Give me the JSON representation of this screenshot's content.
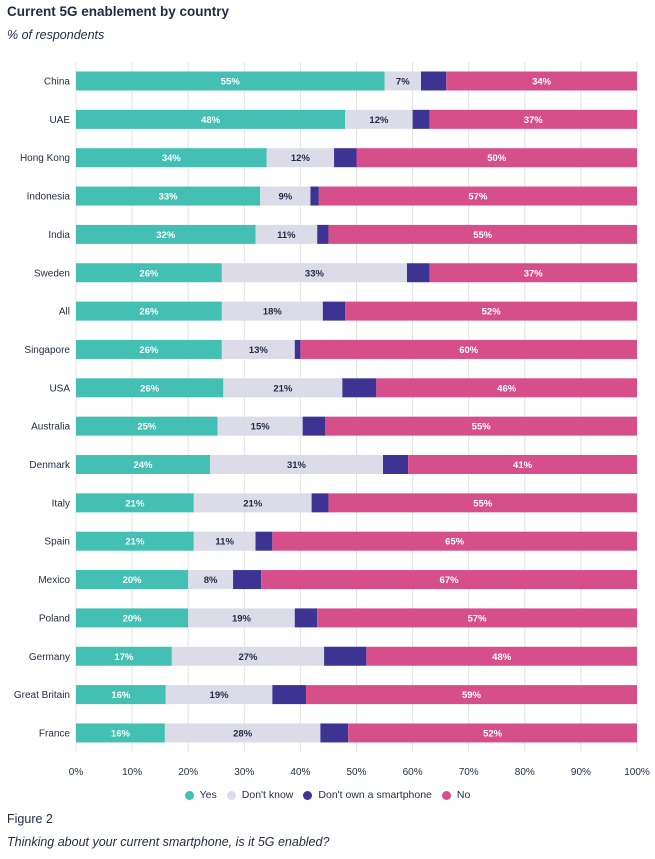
{
  "header": {
    "title": "Current 5G enablement by country",
    "subtitle": "% of respondents"
  },
  "footer": {
    "figure_label": "Figure 2",
    "note": "Thinking about your current smartphone, is it 5G enabled?"
  },
  "colors": {
    "yes": "#43bfb3",
    "dont_know": "#dcdce8",
    "dont_own": "#3d3393",
    "no": "#d64f8a",
    "grid": "#e3e3e3",
    "text": "#1f2a44"
  },
  "chart_data": {
    "type": "bar",
    "orientation": "horizontal",
    "stacked": true,
    "title": "Current 5G enablement by country",
    "subtitle": "% of respondents",
    "xlim": [
      0,
      100
    ],
    "x_ticks": [
      "0%",
      "10%",
      "20%",
      "30%",
      "40%",
      "50%",
      "60%",
      "70%",
      "80%",
      "90%",
      "100%"
    ],
    "legend_position": "bottom",
    "categories": [
      "China",
      "UAE",
      "Hong Kong",
      "Indonesia",
      "India",
      "Sweden",
      "All",
      "Singapore",
      "USA",
      "Australia",
      "Denmark",
      "Italy",
      "Spain",
      "Mexico",
      "Poland",
      "Germany",
      "Great Britain",
      "France"
    ],
    "series": [
      {
        "name": "Yes",
        "color_key": "yes",
        "values": [
          55,
          48,
          34,
          33,
          32,
          26,
          26,
          26,
          26,
          25,
          24,
          21,
          21,
          20,
          20,
          17,
          16,
          16
        ],
        "labels": [
          "55%",
          "48%",
          "34%",
          "33%",
          "32%",
          "26%",
          "26%",
          "26%",
          "26%",
          "25%",
          "24%",
          "21%",
          "21%",
          "20%",
          "20%",
          "17%",
          "16%",
          "16%"
        ]
      },
      {
        "name": "Don't know",
        "color_key": "dont_know",
        "values": [
          6.5,
          12,
          12,
          9,
          11,
          33,
          18,
          13,
          21,
          15,
          31,
          21,
          11,
          8,
          19,
          27,
          19,
          28
        ],
        "labels": [
          "7%",
          "12%",
          "12%",
          "9%",
          "11%",
          "33%",
          "18%",
          "13%",
          "21%",
          "15%",
          "31%",
          "21%",
          "11%",
          "8%",
          "19%",
          "27%",
          "19%",
          "28%"
        ]
      },
      {
        "name": "Don't own a smartphone",
        "color_key": "dont_own",
        "values": [
          4.5,
          3,
          4,
          1.5,
          2,
          4,
          4,
          1,
          6,
          4,
          4.5,
          3,
          3,
          5,
          4,
          7.5,
          6,
          5
        ],
        "labels": [
          "",
          "",
          "",
          "",
          "",
          "",
          "",
          "",
          "",
          "",
          "",
          "",
          "",
          "",
          "",
          "",
          "",
          ""
        ]
      },
      {
        "name": "No",
        "color_key": "no",
        "values": [
          34,
          37,
          50,
          57,
          55,
          37,
          52,
          60,
          46,
          55,
          41,
          55,
          65,
          67,
          57,
          48,
          59,
          52
        ],
        "labels": [
          "34%",
          "37%",
          "50%",
          "57%",
          "55%",
          "37%",
          "52%",
          "60%",
          "46%",
          "55%",
          "41%",
          "55%",
          "65%",
          "67%",
          "57%",
          "48%",
          "59%",
          "52%"
        ]
      }
    ]
  }
}
